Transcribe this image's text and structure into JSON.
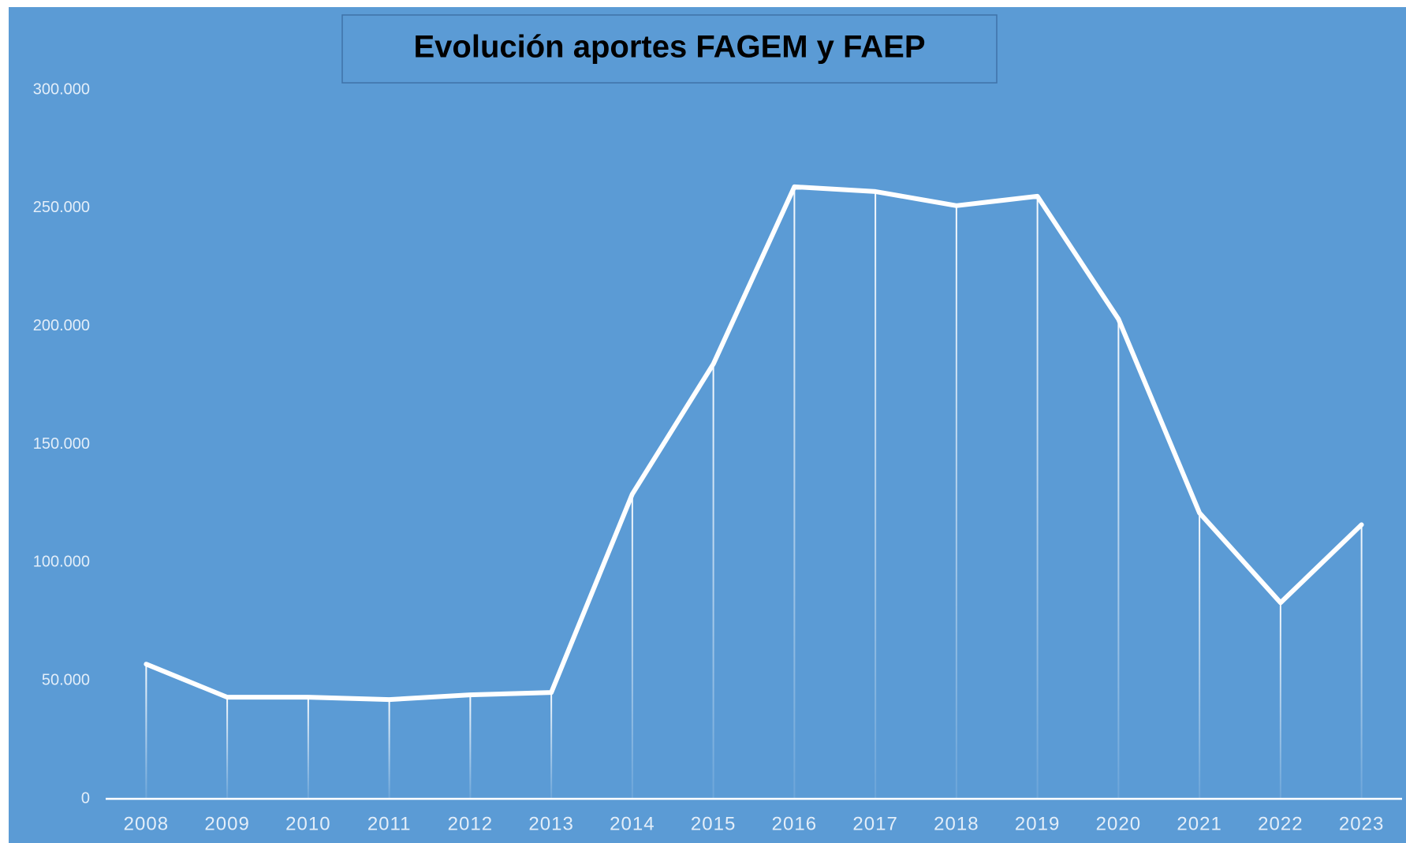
{
  "chart_data": {
    "type": "line",
    "title": "Evolución aportes FAGEM y FAEP",
    "categories": [
      "2008",
      "2009",
      "2010",
      "2011",
      "2012",
      "2013",
      "2014",
      "2015",
      "2016",
      "2017",
      "2018",
      "2019",
      "2020",
      "2021",
      "2022",
      "2023"
    ],
    "values": [
      57000,
      43000,
      43000,
      42000,
      44000,
      45000,
      129000,
      184000,
      259000,
      257000,
      251000,
      255000,
      203000,
      121000,
      83000,
      116000
    ],
    "color": "#ffffff",
    "ylim": [
      0,
      300000
    ],
    "yticks": [
      0,
      {
        "value": 50000,
        "label": "50.000"
      },
      {
        "value": 100000,
        "label": "100.000"
      },
      {
        "value": 150000,
        "label": "150.000"
      },
      {
        "value": 200000,
        "label": "200.000"
      },
      {
        "value": 250000,
        "label": "250.000"
      },
      {
        "value": 300000,
        "label": "300.000"
      }
    ],
    "grid": false,
    "drop_lines": true
  }
}
